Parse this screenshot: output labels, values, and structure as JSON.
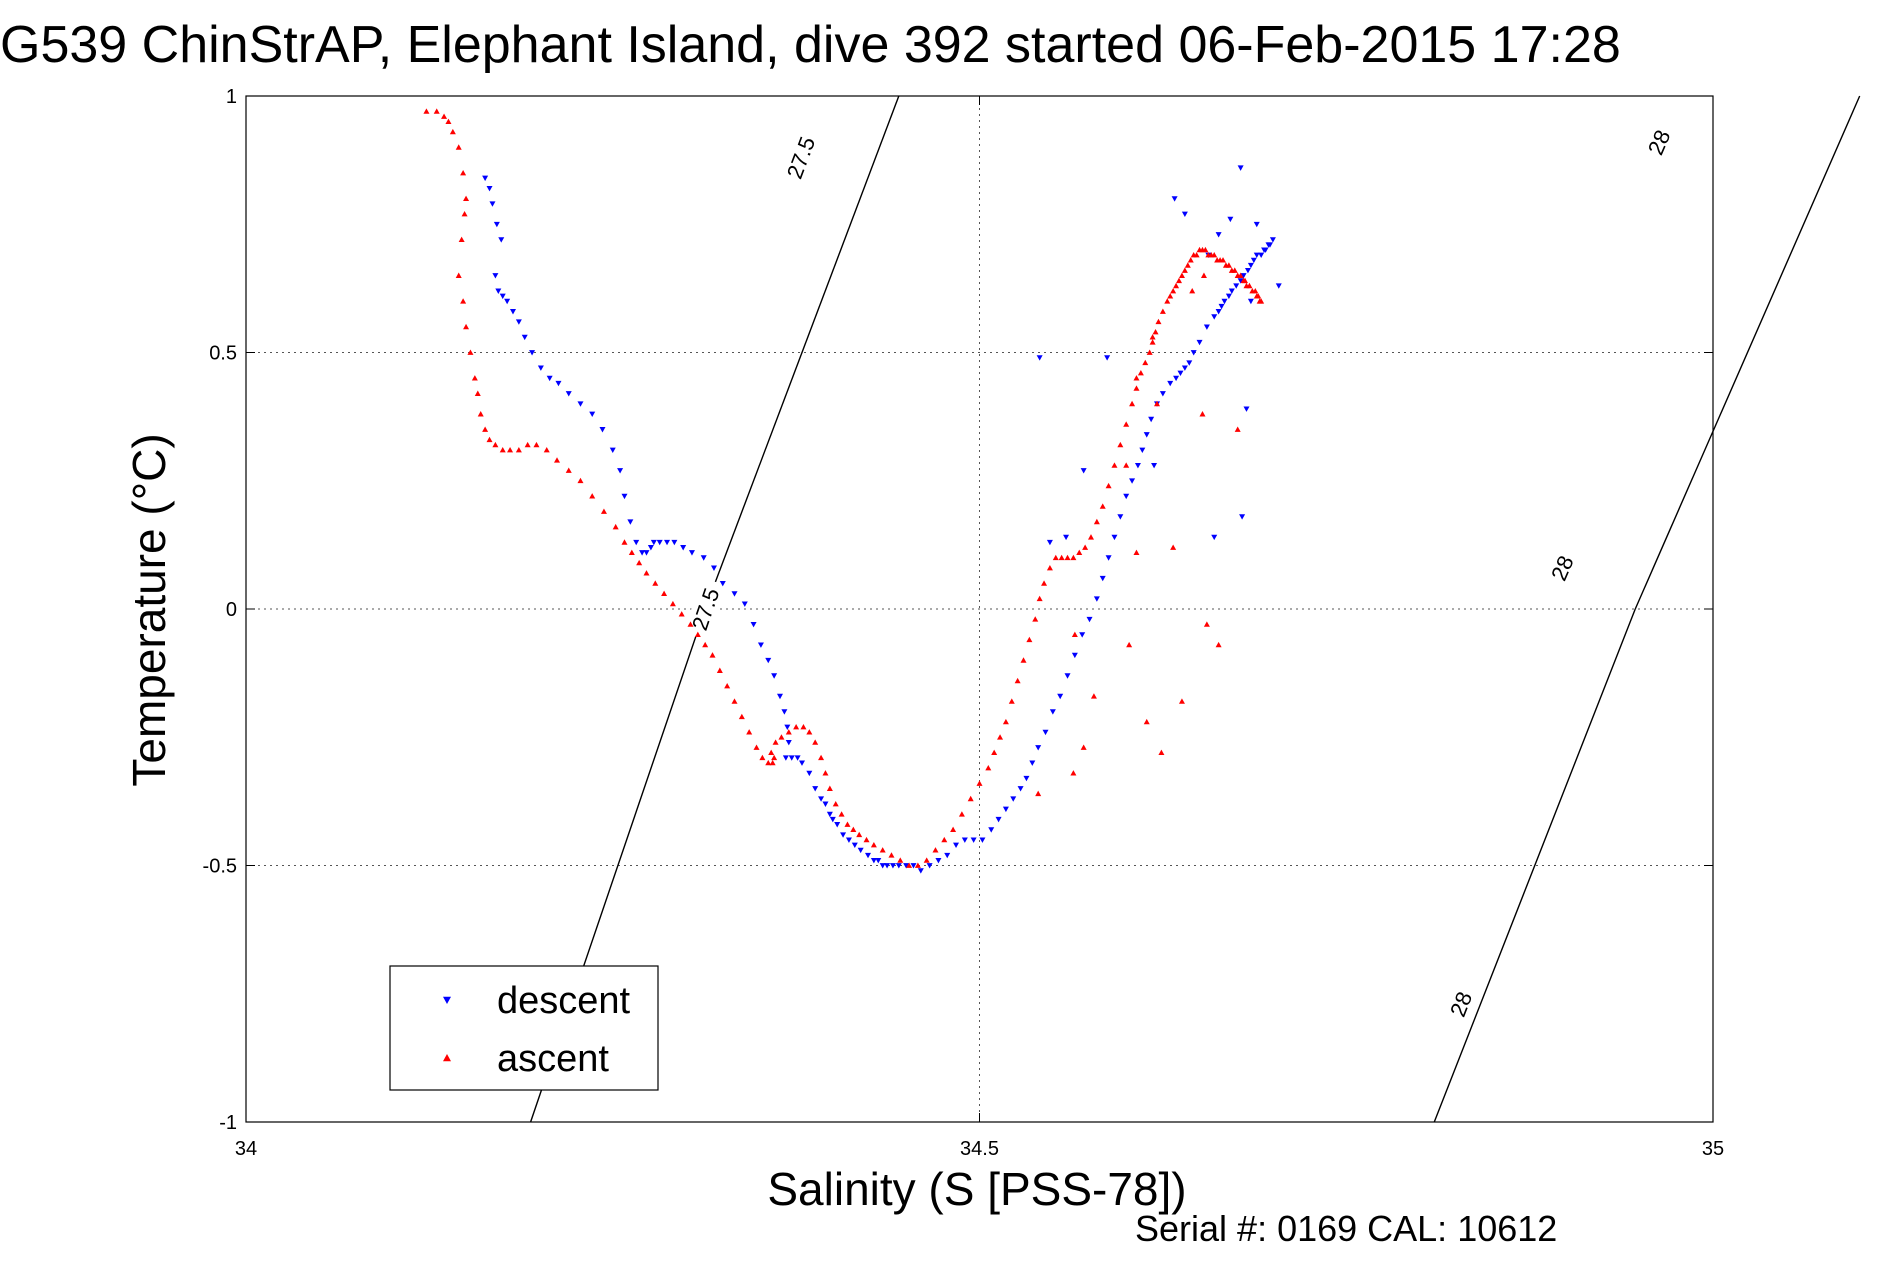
{
  "chart_data": {
    "type": "scatter",
    "title": "G539 ChinStrAP, Elephant Island, dive 392 started 06-Feb-2015 17:28",
    "xlabel": "Salinity (S [PSS-78])",
    "ylabel": "Temperature (°C)",
    "xlim": [
      34,
      35
    ],
    "ylim": [
      -1,
      1
    ],
    "x_ticks": [
      "34",
      "34.5",
      "35"
    ],
    "y_ticks": [
      "-1",
      "-0.5",
      "0",
      "0.5",
      "1"
    ],
    "grid": true,
    "legend_position": "bottom-left",
    "footer": "Serial #: 0169 CAL: 10612",
    "density_contours": [
      {
        "label": "27.5",
        "x": [
          34.194,
          34.313
        ],
        "y": [
          -1.0,
          0.0
        ]
      },
      {
        "label": "27.5",
        "x": [
          34.313,
          34.445
        ],
        "y": [
          0.0,
          1.0
        ]
      },
      {
        "label": "28",
        "x": [
          34.81,
          34.947
        ],
        "y": [
          -1.0,
          0.0
        ]
      },
      {
        "label": "28",
        "x": [
          34.947,
          35.1
        ],
        "y": [
          0.0,
          1.0
        ]
      }
    ],
    "contour_label_positions": [
      {
        "text": "27.5",
        "x": 34.313,
        "y": -0.0
      },
      {
        "text": "27.5",
        "x": 34.378,
        "y": 0.88
      },
      {
        "text": "28",
        "x": 34.828,
        "y": -0.77
      },
      {
        "text": "28",
        "x": 34.897,
        "y": 0.08
      },
      {
        "text": "28",
        "x": 34.963,
        "y": 0.91
      }
    ],
    "series": [
      {
        "name": "descent",
        "color": "#0000ff",
        "marker": "triangle-down",
        "x": [
          34.163,
          34.166,
          34.168,
          34.171,
          34.174,
          34.17,
          34.172,
          34.175,
          34.178,
          34.182,
          34.186,
          34.19,
          34.195,
          34.201,
          34.207,
          34.213,
          34.22,
          34.228,
          34.236,
          34.243,
          34.25,
          34.255,
          34.258,
          34.262,
          34.266,
          34.27,
          34.273,
          34.276,
          34.278,
          34.282,
          34.287,
          34.292,
          34.298,
          34.304,
          34.312,
          34.319,
          34.325,
          34.333,
          34.34,
          34.346,
          34.351,
          34.356,
          34.36,
          34.364,
          34.367,
          34.369,
          34.37,
          34.368,
          34.372,
          34.376,
          34.379,
          34.384,
          34.388,
          34.392,
          34.395,
          34.398,
          34.4,
          34.403,
          34.407,
          34.411,
          34.415,
          34.419,
          34.424,
          34.428,
          34.431,
          34.434,
          34.437,
          34.441,
          34.445,
          34.45,
          34.455,
          34.46,
          34.466,
          34.472,
          34.478,
          34.484,
          34.49,
          34.496,
          34.502,
          34.508,
          34.513,
          34.518,
          34.523,
          34.528,
          34.532,
          34.536,
          34.54,
          34.545,
          34.55,
          34.555,
          34.56,
          34.565,
          34.57,
          34.575,
          34.58,
          34.584,
          34.588,
          34.592,
          34.596,
          34.6,
          34.604,
          34.608,
          34.611,
          34.614,
          34.617,
          34.621,
          34.625,
          34.63,
          34.634,
          34.637,
          34.64,
          34.643,
          34.646,
          34.65,
          34.655,
          34.66,
          34.663,
          34.665,
          34.667,
          34.67,
          34.672,
          34.675,
          34.678,
          34.68,
          34.683,
          34.685,
          34.687,
          34.689,
          34.692,
          34.694,
          34.695,
          34.697,
          34.698,
          34.7,
          34.689,
          34.64,
          34.633,
          34.656,
          34.663,
          34.678,
          34.671,
          34.559,
          34.548,
          34.571,
          34.682,
          34.679,
          34.685,
          34.704,
          34.66,
          34.587,
          34.619,
          34.541
        ],
        "y": [
          0.84,
          0.82,
          0.79,
          0.75,
          0.72,
          0.65,
          0.62,
          0.61,
          0.6,
          0.58,
          0.56,
          0.53,
          0.5,
          0.47,
          0.45,
          0.44,
          0.42,
          0.4,
          0.38,
          0.35,
          0.31,
          0.27,
          0.22,
          0.17,
          0.13,
          0.11,
          0.11,
          0.12,
          0.13,
          0.13,
          0.13,
          0.13,
          0.12,
          0.11,
          0.1,
          0.08,
          0.05,
          0.03,
          0.01,
          -0.03,
          -0.07,
          -0.1,
          -0.13,
          -0.17,
          -0.2,
          -0.23,
          -0.26,
          -0.29,
          -0.29,
          -0.29,
          -0.3,
          -0.32,
          -0.35,
          -0.37,
          -0.38,
          -0.4,
          -0.41,
          -0.42,
          -0.44,
          -0.45,
          -0.46,
          -0.47,
          -0.48,
          -0.49,
          -0.49,
          -0.5,
          -0.5,
          -0.5,
          -0.5,
          -0.5,
          -0.5,
          -0.51,
          -0.5,
          -0.49,
          -0.48,
          -0.46,
          -0.45,
          -0.45,
          -0.45,
          -0.43,
          -0.41,
          -0.39,
          -0.37,
          -0.35,
          -0.33,
          -0.3,
          -0.27,
          -0.24,
          -0.2,
          -0.17,
          -0.13,
          -0.09,
          -0.05,
          -0.02,
          0.02,
          0.06,
          0.1,
          0.14,
          0.18,
          0.22,
          0.25,
          0.28,
          0.31,
          0.34,
          0.37,
          0.4,
          0.42,
          0.44,
          0.45,
          0.46,
          0.47,
          0.48,
          0.5,
          0.52,
          0.55,
          0.57,
          0.58,
          0.59,
          0.6,
          0.61,
          0.62,
          0.63,
          0.64,
          0.65,
          0.66,
          0.67,
          0.68,
          0.69,
          0.69,
          0.7,
          0.7,
          0.71,
          0.71,
          0.72,
          0.75,
          0.77,
          0.8,
          0.69,
          0.73,
          0.86,
          0.76,
          0.14,
          0.13,
          0.27,
          0.39,
          0.18,
          0.6,
          0.63,
          0.14,
          0.49,
          0.28,
          0.49
        ]
      },
      {
        "name": "ascent",
        "color": "#ff0000",
        "marker": "triangle-up",
        "x": [
          34.123,
          34.13,
          34.135,
          34.138,
          34.141,
          34.145,
          34.148,
          34.15,
          34.149,
          34.147,
          34.145,
          34.148,
          34.15,
          34.153,
          34.156,
          34.158,
          34.16,
          34.163,
          34.166,
          34.17,
          34.175,
          34.18,
          34.186,
          34.192,
          34.198,
          34.205,
          34.212,
          34.22,
          34.228,
          34.236,
          34.244,
          34.252,
          34.258,
          34.263,
          34.268,
          34.273,
          34.279,
          34.285,
          34.291,
          34.297,
          34.303,
          34.308,
          34.313,
          34.318,
          34.323,
          34.328,
          34.333,
          34.338,
          34.343,
          34.348,
          34.352,
          34.356,
          34.359,
          34.36,
          34.358,
          34.361,
          34.365,
          34.37,
          34.375,
          34.38,
          34.384,
          34.388,
          34.392,
          34.395,
          34.398,
          34.402,
          34.406,
          34.41,
          34.414,
          34.418,
          34.423,
          34.428,
          34.434,
          34.44,
          34.446,
          34.452,
          34.458,
          34.464,
          34.47,
          34.476,
          34.482,
          34.488,
          34.494,
          34.5,
          34.506,
          34.51,
          34.514,
          34.518,
          34.522,
          34.526,
          34.53,
          34.534,
          34.538,
          34.541,
          34.544,
          34.548,
          34.552,
          34.556,
          34.56,
          34.564,
          34.568,
          34.572,
          34.576,
          34.58,
          34.584,
          34.588,
          34.592,
          34.596,
          34.6,
          34.604,
          34.607,
          34.61,
          34.613,
          34.616,
          34.618,
          34.62,
          34.622,
          34.625,
          34.628,
          34.63,
          34.632,
          34.634,
          34.636,
          34.638,
          34.64,
          34.642,
          34.644,
          34.646,
          34.648,
          34.65,
          34.652,
          34.654,
          34.656,
          34.658,
          34.66,
          34.662,
          34.664,
          34.666,
          34.668,
          34.67,
          34.672,
          34.674,
          34.676,
          34.678,
          34.68,
          34.681,
          34.682,
          34.684,
          34.686,
          34.688,
          34.689,
          34.69,
          34.691,
          34.692,
          34.655,
          34.663,
          34.638,
          34.614,
          34.624,
          34.564,
          34.571,
          34.578,
          34.602,
          34.632,
          34.607,
          34.607,
          34.618,
          34.645,
          34.653,
          34.54,
          34.565,
          34.6,
          34.621,
          34.652,
          34.676
        ],
        "y": [
          0.97,
          0.97,
          0.96,
          0.95,
          0.93,
          0.9,
          0.85,
          0.8,
          0.77,
          0.72,
          0.65,
          0.6,
          0.55,
          0.5,
          0.45,
          0.42,
          0.38,
          0.35,
          0.33,
          0.32,
          0.31,
          0.31,
          0.31,
          0.32,
          0.32,
          0.31,
          0.29,
          0.27,
          0.25,
          0.22,
          0.19,
          0.16,
          0.13,
          0.11,
          0.09,
          0.07,
          0.05,
          0.03,
          0.01,
          -0.01,
          -0.03,
          -0.05,
          -0.07,
          -0.09,
          -0.12,
          -0.15,
          -0.18,
          -0.21,
          -0.24,
          -0.27,
          -0.29,
          -0.3,
          -0.3,
          -0.29,
          -0.28,
          -0.26,
          -0.25,
          -0.24,
          -0.23,
          -0.23,
          -0.24,
          -0.26,
          -0.29,
          -0.32,
          -0.35,
          -0.38,
          -0.4,
          -0.42,
          -0.43,
          -0.44,
          -0.45,
          -0.46,
          -0.47,
          -0.48,
          -0.49,
          -0.5,
          -0.5,
          -0.49,
          -0.47,
          -0.45,
          -0.43,
          -0.4,
          -0.37,
          -0.34,
          -0.31,
          -0.28,
          -0.25,
          -0.22,
          -0.18,
          -0.14,
          -0.1,
          -0.06,
          -0.02,
          0.02,
          0.05,
          0.08,
          0.1,
          0.1,
          0.1,
          0.1,
          0.11,
          0.12,
          0.14,
          0.17,
          0.2,
          0.24,
          0.28,
          0.32,
          0.36,
          0.4,
          0.43,
          0.46,
          0.48,
          0.5,
          0.52,
          0.54,
          0.56,
          0.58,
          0.6,
          0.61,
          0.62,
          0.63,
          0.64,
          0.65,
          0.66,
          0.67,
          0.68,
          0.69,
          0.69,
          0.7,
          0.7,
          0.7,
          0.69,
          0.69,
          0.69,
          0.68,
          0.68,
          0.68,
          0.67,
          0.67,
          0.66,
          0.66,
          0.65,
          0.65,
          0.64,
          0.64,
          0.63,
          0.63,
          0.62,
          0.62,
          0.61,
          0.61,
          0.6,
          0.6,
          -0.03,
          -0.07,
          -0.18,
          -0.22,
          -0.28,
          -0.32,
          -0.27,
          -0.17,
          -0.07,
          0.12,
          0.11,
          0.45,
          0.53,
          0.62,
          0.65,
          -0.36,
          -0.05,
          0.28,
          0.4,
          0.38,
          0.35
        ]
      }
    ]
  }
}
